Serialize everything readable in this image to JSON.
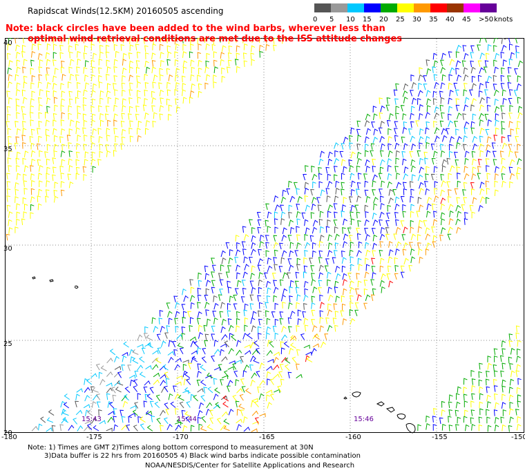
{
  "title": "Rapidscat Winds(12.5KM) 20160505 ascending",
  "note": {
    "line1": "Note: black circles have been added to the wind barbs, wherever less than",
    "line2": "optimal wind retrieval conditions are met due to the ISS attitude changes"
  },
  "legend": {
    "unit": "knots",
    "entries": [
      {
        "label": "0",
        "color": "#555555"
      },
      {
        "label": "5",
        "color": "#999999"
      },
      {
        "label": "10",
        "color": "#00c8ff"
      },
      {
        "label": "15",
        "color": "#0000ff"
      },
      {
        "label": "20",
        "color": "#00aa00"
      },
      {
        "label": "25",
        "color": "#ffff00"
      },
      {
        "label": "30",
        "color": "#ff9900"
      },
      {
        "label": "35",
        "color": "#ff0000"
      },
      {
        "label": "40",
        "color": "#993300"
      },
      {
        "label": "45",
        "color": "#ff00ff"
      },
      {
        "label": ">50",
        "color": "#660099"
      }
    ]
  },
  "axes": {
    "lat_labels": [
      "40",
      "35",
      "30",
      "25",
      "20"
    ],
    "lon_labels": [
      "-180",
      "-175",
      "-170",
      "-165",
      "-160",
      "-155",
      "-150"
    ]
  },
  "time_labels": [
    "15:43",
    "15:44",
    "15:46"
  ],
  "footnotes": {
    "line1": "Note: 1) Times are GMT 2)Times along bottom correspond to measurement at 30N",
    "line2": "3)Data buffer is 22 hrs from 20160505 4) Black wind barbs indicate possible contamination",
    "credit": "NOAA/NESDIS/Center for Satellite Applications and Research"
  }
}
